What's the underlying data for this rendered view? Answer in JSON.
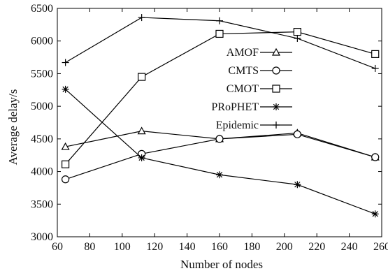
{
  "chart_data": {
    "type": "line",
    "xlabel": "Number of nodes",
    "ylabel": "Average delay/s",
    "xlim": [
      60,
      260
    ],
    "ylim": [
      3000,
      6500
    ],
    "xticks": [
      60,
      80,
      100,
      120,
      140,
      160,
      180,
      200,
      220,
      240,
      260
    ],
    "yticks": [
      3000,
      3500,
      4000,
      4500,
      5000,
      5500,
      6000,
      6500
    ],
    "grid": false,
    "legend_position": "right",
    "series": [
      {
        "name": "AMOF",
        "marker": "triangle",
        "x": [
          65,
          112,
          160,
          208,
          256
        ],
        "values": [
          4380,
          4620,
          4500,
          4590,
          4220
        ]
      },
      {
        "name": "CMTS",
        "marker": "circle",
        "x": [
          65,
          112,
          160,
          208,
          256
        ],
        "values": [
          3880,
          4270,
          4500,
          4570,
          4220
        ]
      },
      {
        "name": "CMOT",
        "marker": "square",
        "x": [
          65,
          112,
          160,
          208,
          256
        ],
        "values": [
          4110,
          5450,
          6110,
          6140,
          5800
        ]
      },
      {
        "name": "PRoPHET",
        "marker": "star",
        "x": [
          65,
          112,
          160,
          208,
          256
        ],
        "values": [
          5260,
          4210,
          3950,
          3800,
          3350
        ]
      },
      {
        "name": "Epidemic",
        "marker": "plus",
        "x": [
          65,
          112,
          160,
          208,
          256
        ],
        "values": [
          5670,
          6360,
          6310,
          6040,
          5580
        ]
      }
    ]
  }
}
